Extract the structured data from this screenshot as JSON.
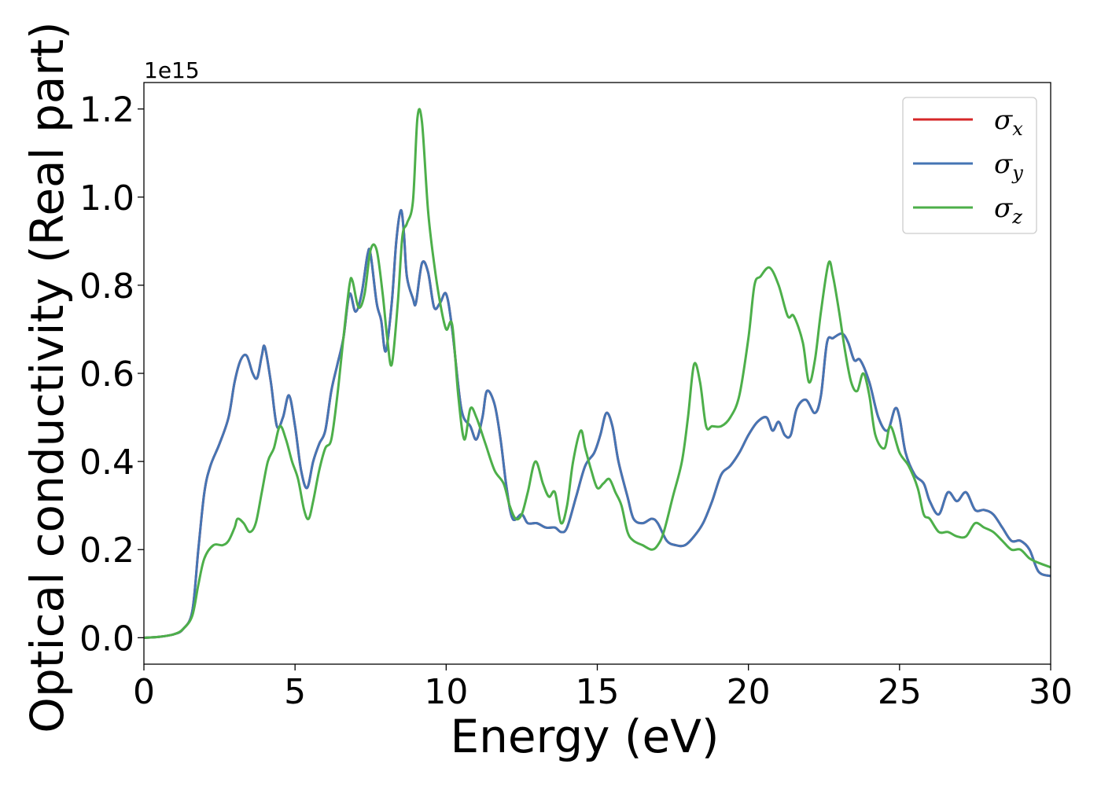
{
  "chart_data": {
    "type": "line",
    "title": "",
    "xlabel": "Energy (eV)",
    "ylabel": "Optical conductivity (Real part)",
    "y_offset_label": "1e15",
    "xlim": [
      0,
      30
    ],
    "ylim": [
      -0.06,
      1.26
    ],
    "xticks": [
      0,
      5,
      10,
      15,
      20,
      25,
      30
    ],
    "xtick_labels": [
      "0",
      "5",
      "10",
      "15",
      "20",
      "25",
      "30"
    ],
    "yticks": [
      0.0,
      0.2,
      0.4,
      0.6,
      0.8,
      1.0,
      1.2
    ],
    "ytick_labels": [
      "0.0",
      "0.2",
      "0.4",
      "0.6",
      "0.8",
      "1.0",
      "1.2"
    ],
    "grid": false,
    "legend_position": "top-right",
    "series": [
      {
        "name": "σ_x",
        "legend_base": "σ",
        "legend_sub": "x",
        "color": "#d62728",
        "x": [
          0,
          0.5,
          1.0,
          1.3,
          1.6,
          1.8,
          2.0,
          2.2,
          2.5,
          2.8,
          3.0,
          3.2,
          3.4,
          3.6,
          3.75,
          3.9,
          4.0,
          4.2,
          4.4,
          4.6,
          4.8,
          5.0,
          5.2,
          5.4,
          5.6,
          5.8,
          6.0,
          6.2,
          6.4,
          6.6,
          6.8,
          7.0,
          7.2,
          7.4,
          7.5,
          7.7,
          7.85,
          8.0,
          8.2,
          8.35,
          8.5,
          8.6,
          8.7,
          8.9,
          9.0,
          9.2,
          9.4,
          9.6,
          9.8,
          10.0,
          10.2,
          10.5,
          10.8,
          11.0,
          11.2,
          11.35,
          11.6,
          11.8,
          12.0,
          12.2,
          12.5,
          12.7,
          13.0,
          13.3,
          13.6,
          13.8,
          14.0,
          14.3,
          14.6,
          14.9,
          15.1,
          15.3,
          15.5,
          15.7,
          16.0,
          16.2,
          16.5,
          16.8,
          17.0,
          17.3,
          17.6,
          17.9,
          18.2,
          18.5,
          18.8,
          19.1,
          19.4,
          19.7,
          20.0,
          20.3,
          20.6,
          20.8,
          21.0,
          21.2,
          21.4,
          21.6,
          21.9,
          22.2,
          22.4,
          22.6,
          22.8,
          23.1,
          23.3,
          23.5,
          23.7,
          24.0,
          24.3,
          24.6,
          24.85,
          25.0,
          25.2,
          25.5,
          25.8,
          26.0,
          26.3,
          26.6,
          26.9,
          27.2,
          27.5,
          27.8,
          28.1,
          28.4,
          28.7,
          29.0,
          29.3,
          29.6,
          30.0
        ],
        "y": [
          0.0,
          0.002,
          0.008,
          0.02,
          0.06,
          0.2,
          0.33,
          0.39,
          0.44,
          0.5,
          0.58,
          0.63,
          0.64,
          0.6,
          0.59,
          0.64,
          0.66,
          0.58,
          0.48,
          0.5,
          0.55,
          0.48,
          0.38,
          0.34,
          0.4,
          0.44,
          0.47,
          0.56,
          0.62,
          0.68,
          0.78,
          0.74,
          0.78,
          0.87,
          0.87,
          0.76,
          0.72,
          0.65,
          0.76,
          0.9,
          0.97,
          0.92,
          0.82,
          0.77,
          0.76,
          0.85,
          0.83,
          0.75,
          0.76,
          0.78,
          0.7,
          0.52,
          0.48,
          0.45,
          0.5,
          0.56,
          0.53,
          0.45,
          0.34,
          0.27,
          0.28,
          0.26,
          0.26,
          0.25,
          0.25,
          0.24,
          0.25,
          0.32,
          0.39,
          0.42,
          0.46,
          0.51,
          0.48,
          0.4,
          0.32,
          0.27,
          0.26,
          0.27,
          0.26,
          0.22,
          0.21,
          0.21,
          0.23,
          0.26,
          0.31,
          0.37,
          0.39,
          0.42,
          0.46,
          0.49,
          0.5,
          0.47,
          0.49,
          0.46,
          0.46,
          0.52,
          0.54,
          0.51,
          0.55,
          0.67,
          0.68,
          0.69,
          0.67,
          0.63,
          0.63,
          0.58,
          0.5,
          0.47,
          0.52,
          0.5,
          0.42,
          0.37,
          0.35,
          0.31,
          0.28,
          0.33,
          0.31,
          0.33,
          0.29,
          0.29,
          0.28,
          0.25,
          0.22,
          0.22,
          0.2,
          0.15,
          0.14
        ]
      },
      {
        "name": "σ_y",
        "legend_base": "σ",
        "legend_sub": "y",
        "color": "#4575b4",
        "x": [
          0,
          0.5,
          1.0,
          1.3,
          1.6,
          1.8,
          2.0,
          2.2,
          2.5,
          2.8,
          3.0,
          3.2,
          3.4,
          3.6,
          3.75,
          3.9,
          4.0,
          4.2,
          4.4,
          4.6,
          4.8,
          5.0,
          5.2,
          5.4,
          5.6,
          5.8,
          6.0,
          6.2,
          6.4,
          6.6,
          6.8,
          7.0,
          7.2,
          7.4,
          7.5,
          7.7,
          7.85,
          8.0,
          8.2,
          8.35,
          8.5,
          8.6,
          8.7,
          8.9,
          9.0,
          9.2,
          9.4,
          9.6,
          9.8,
          10.0,
          10.2,
          10.5,
          10.8,
          11.0,
          11.2,
          11.35,
          11.6,
          11.8,
          12.0,
          12.2,
          12.5,
          12.7,
          13.0,
          13.3,
          13.6,
          13.8,
          14.0,
          14.3,
          14.6,
          14.9,
          15.1,
          15.3,
          15.5,
          15.7,
          16.0,
          16.2,
          16.5,
          16.8,
          17.0,
          17.3,
          17.6,
          17.9,
          18.2,
          18.5,
          18.8,
          19.1,
          19.4,
          19.7,
          20.0,
          20.3,
          20.6,
          20.8,
          21.0,
          21.2,
          21.4,
          21.6,
          21.9,
          22.2,
          22.4,
          22.6,
          22.8,
          23.1,
          23.3,
          23.5,
          23.7,
          24.0,
          24.3,
          24.6,
          24.85,
          25.0,
          25.2,
          25.5,
          25.8,
          26.0,
          26.3,
          26.6,
          26.9,
          27.2,
          27.5,
          27.8,
          28.1,
          28.4,
          28.7,
          29.0,
          29.3,
          29.6,
          30.0
        ],
        "y": [
          0.0,
          0.002,
          0.008,
          0.02,
          0.06,
          0.2,
          0.33,
          0.39,
          0.44,
          0.5,
          0.58,
          0.63,
          0.64,
          0.6,
          0.59,
          0.64,
          0.66,
          0.58,
          0.48,
          0.5,
          0.55,
          0.48,
          0.38,
          0.34,
          0.4,
          0.44,
          0.47,
          0.56,
          0.62,
          0.68,
          0.78,
          0.74,
          0.78,
          0.87,
          0.87,
          0.76,
          0.72,
          0.65,
          0.76,
          0.9,
          0.97,
          0.92,
          0.82,
          0.77,
          0.76,
          0.85,
          0.83,
          0.75,
          0.76,
          0.78,
          0.7,
          0.52,
          0.48,
          0.45,
          0.5,
          0.56,
          0.53,
          0.45,
          0.34,
          0.27,
          0.28,
          0.26,
          0.26,
          0.25,
          0.25,
          0.24,
          0.25,
          0.32,
          0.39,
          0.42,
          0.46,
          0.51,
          0.48,
          0.4,
          0.32,
          0.27,
          0.26,
          0.27,
          0.26,
          0.22,
          0.21,
          0.21,
          0.23,
          0.26,
          0.31,
          0.37,
          0.39,
          0.42,
          0.46,
          0.49,
          0.5,
          0.47,
          0.49,
          0.46,
          0.46,
          0.52,
          0.54,
          0.51,
          0.55,
          0.67,
          0.68,
          0.69,
          0.67,
          0.63,
          0.63,
          0.58,
          0.5,
          0.47,
          0.52,
          0.5,
          0.42,
          0.37,
          0.35,
          0.31,
          0.28,
          0.33,
          0.31,
          0.33,
          0.29,
          0.29,
          0.28,
          0.25,
          0.22,
          0.22,
          0.2,
          0.15,
          0.14
        ]
      },
      {
        "name": "σ_z",
        "legend_base": "σ",
        "legend_sub": "z",
        "color": "#4daf4a",
        "x": [
          0,
          0.5,
          1.0,
          1.3,
          1.6,
          1.8,
          2.0,
          2.3,
          2.6,
          2.8,
          3.0,
          3.1,
          3.3,
          3.5,
          3.7,
          3.9,
          4.1,
          4.3,
          4.5,
          4.7,
          4.9,
          5.1,
          5.3,
          5.45,
          5.6,
          5.8,
          6.0,
          6.2,
          6.4,
          6.6,
          6.8,
          6.9,
          7.1,
          7.3,
          7.5,
          7.7,
          7.9,
          8.05,
          8.2,
          8.4,
          8.55,
          8.7,
          8.9,
          9.05,
          9.2,
          9.4,
          9.6,
          9.8,
          10.0,
          10.2,
          10.4,
          10.6,
          10.8,
          11.0,
          11.3,
          11.6,
          11.9,
          12.1,
          12.3,
          12.5,
          12.7,
          12.95,
          13.2,
          13.4,
          13.6,
          13.8,
          14.0,
          14.2,
          14.45,
          14.6,
          14.8,
          15.0,
          15.2,
          15.4,
          15.6,
          15.8,
          16.0,
          16.2,
          16.5,
          16.8,
          17.0,
          17.2,
          17.5,
          17.8,
          18.0,
          18.2,
          18.4,
          18.6,
          18.8,
          19.1,
          19.4,
          19.7,
          20.0,
          20.2,
          20.4,
          20.7,
          21.0,
          21.3,
          21.5,
          21.8,
          22.0,
          22.2,
          22.4,
          22.65,
          22.8,
          23.0,
          23.2,
          23.4,
          23.6,
          23.8,
          24.0,
          24.2,
          24.5,
          24.7,
          25.0,
          25.3,
          25.6,
          25.8,
          26.0,
          26.3,
          26.6,
          26.9,
          27.2,
          27.5,
          27.8,
          28.1,
          28.4,
          28.7,
          29.0,
          29.3,
          29.6,
          30.0
        ],
        "y": [
          0.0,
          0.002,
          0.008,
          0.02,
          0.05,
          0.12,
          0.18,
          0.21,
          0.21,
          0.22,
          0.25,
          0.27,
          0.26,
          0.24,
          0.26,
          0.33,
          0.4,
          0.43,
          0.48,
          0.45,
          0.4,
          0.36,
          0.29,
          0.27,
          0.31,
          0.38,
          0.43,
          0.45,
          0.55,
          0.68,
          0.8,
          0.81,
          0.75,
          0.78,
          0.88,
          0.88,
          0.78,
          0.68,
          0.62,
          0.76,
          0.91,
          0.94,
          0.99,
          1.18,
          1.17,
          0.97,
          0.85,
          0.76,
          0.7,
          0.71,
          0.55,
          0.45,
          0.52,
          0.5,
          0.44,
          0.38,
          0.35,
          0.3,
          0.27,
          0.28,
          0.33,
          0.4,
          0.35,
          0.32,
          0.33,
          0.26,
          0.3,
          0.4,
          0.47,
          0.43,
          0.38,
          0.34,
          0.35,
          0.36,
          0.33,
          0.3,
          0.24,
          0.22,
          0.21,
          0.2,
          0.21,
          0.24,
          0.32,
          0.4,
          0.5,
          0.62,
          0.58,
          0.48,
          0.48,
          0.48,
          0.5,
          0.55,
          0.68,
          0.8,
          0.82,
          0.84,
          0.8,
          0.73,
          0.73,
          0.67,
          0.58,
          0.63,
          0.74,
          0.85,
          0.82,
          0.74,
          0.65,
          0.58,
          0.56,
          0.6,
          0.55,
          0.46,
          0.43,
          0.48,
          0.42,
          0.39,
          0.34,
          0.28,
          0.27,
          0.24,
          0.24,
          0.23,
          0.23,
          0.26,
          0.25,
          0.24,
          0.22,
          0.2,
          0.2,
          0.18,
          0.17,
          0.16
        ]
      }
    ]
  }
}
